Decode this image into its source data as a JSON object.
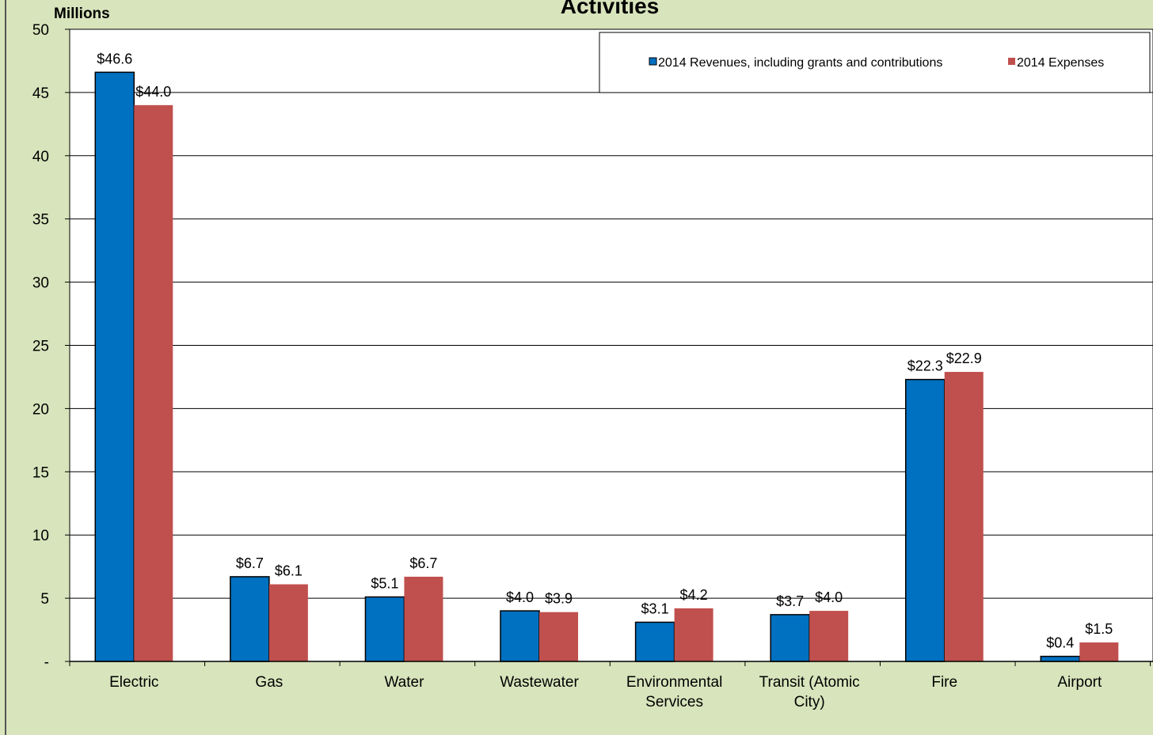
{
  "chart_data": {
    "type": "bar",
    "title": "Activities",
    "y_unit_label": "Millions",
    "ylim": [
      0,
      50
    ],
    "yticks": [
      {
        "value": 0,
        "label": "-"
      },
      {
        "value": 5,
        "label": "5"
      },
      {
        "value": 10,
        "label": "10"
      },
      {
        "value": 15,
        "label": "15"
      },
      {
        "value": 20,
        "label": "20"
      },
      {
        "value": 25,
        "label": "25"
      },
      {
        "value": 30,
        "label": "30"
      },
      {
        "value": 35,
        "label": "35"
      },
      {
        "value": 40,
        "label": "40"
      },
      {
        "value": 45,
        "label": "45"
      },
      {
        "value": 50,
        "label": "50"
      }
    ],
    "grid": true,
    "legend_position": "top-right",
    "categories": [
      [
        "Electric"
      ],
      [
        "Gas"
      ],
      [
        "Water"
      ],
      [
        "Wastewater"
      ],
      [
        "Environmental",
        "Services"
      ],
      [
        "Transit (Atomic",
        "City)"
      ],
      [
        "Fire"
      ],
      [
        "Airport"
      ]
    ],
    "series": [
      {
        "name": "2014 Revenues, including grants and contributions",
        "color": "#0070c0",
        "values": [
          46.6,
          6.7,
          5.1,
          4.0,
          3.1,
          3.7,
          22.3,
          0.4
        ],
        "labels": [
          "$46.6",
          "$6.7",
          "$5.1",
          "$4.0",
          "$3.1",
          "$3.7",
          "$22.3",
          "$0.4"
        ]
      },
      {
        "name": "2014 Expenses",
        "color": "#c0504d",
        "values": [
          44.0,
          6.1,
          6.7,
          3.9,
          4.2,
          4.0,
          22.9,
          1.5
        ],
        "labels": [
          "$44.0",
          "$6.1",
          "$6.7",
          "$3.9",
          "$4.2",
          "$4.0",
          "$22.9",
          "$1.5"
        ]
      }
    ]
  }
}
